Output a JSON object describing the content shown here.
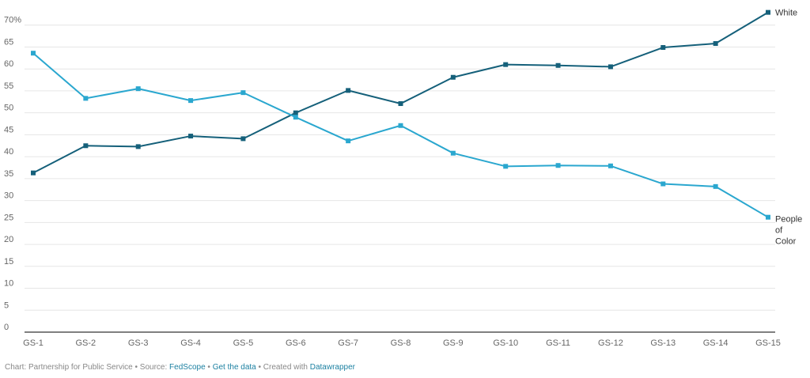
{
  "chart_data": {
    "type": "line",
    "categories": [
      "GS-1",
      "GS-2",
      "GS-3",
      "GS-4",
      "GS-5",
      "GS-6",
      "GS-7",
      "GS-8",
      "GS-9",
      "GS-10",
      "GS-11",
      "GS-12",
      "GS-13",
      "GS-14",
      "GS-15"
    ],
    "series": [
      {
        "name": "White",
        "label_lines": [
          "White"
        ],
        "color": "#15607a",
        "values": [
          36.3,
          42.5,
          42.3,
          44.7,
          44.1,
          50.0,
          55.1,
          52.1,
          58.1,
          61.0,
          60.8,
          60.5,
          64.9,
          65.8,
          72.9
        ]
      },
      {
        "name": "People of Color",
        "label_lines": [
          "People",
          "of",
          "Color"
        ],
        "color": "#2aa7cf",
        "values": [
          63.6,
          53.3,
          55.5,
          52.8,
          54.6,
          49.0,
          43.6,
          47.1,
          40.8,
          37.8,
          38.0,
          37.9,
          33.8,
          33.2,
          26.2
        ]
      }
    ],
    "y_ticks": [
      "0",
      "5",
      "10",
      "15",
      "20",
      "25",
      "30",
      "35",
      "40",
      "45",
      "50",
      "55",
      "60",
      "65",
      "70%"
    ],
    "ylim": [
      0,
      75
    ],
    "grid": true,
    "legend": "direct labels at line ends (right)"
  },
  "footer": {
    "prefix": "Chart: Partnership for Public Service • Source: ",
    "source_link": "FedScope",
    "sep1": " • ",
    "data_link": "Get the data",
    "sep2": " • Created with ",
    "tool_link": "Datawrapper"
  }
}
